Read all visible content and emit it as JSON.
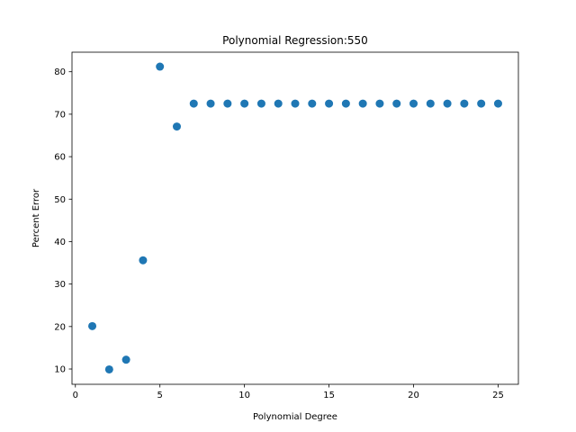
{
  "chart_data": {
    "type": "scatter",
    "title": "Polynomial Regression:550",
    "xlabel": "Polynomial Degree",
    "ylabel": "Percent Error",
    "xlim": [
      -0.2,
      26.2
    ],
    "ylim": [
      6.4,
      84.6
    ],
    "xticks": [
      0,
      5,
      10,
      15,
      20,
      25
    ],
    "yticks": [
      10,
      20,
      30,
      40,
      50,
      60,
      70,
      80
    ],
    "grid": false,
    "marker_color": "#1f77b4",
    "x": [
      1,
      2,
      3,
      4,
      5,
      6,
      7,
      8,
      9,
      10,
      11,
      12,
      13,
      14,
      15,
      16,
      17,
      18,
      19,
      20,
      21,
      22,
      23,
      24,
      25
    ],
    "y": [
      20.1,
      9.9,
      12.2,
      35.6,
      81.2,
      67.1,
      72.5,
      72.5,
      72.5,
      72.5,
      72.5,
      72.5,
      72.5,
      72.5,
      72.5,
      72.5,
      72.5,
      72.5,
      72.5,
      72.5,
      72.5,
      72.5,
      72.5,
      72.5,
      72.5
    ]
  }
}
